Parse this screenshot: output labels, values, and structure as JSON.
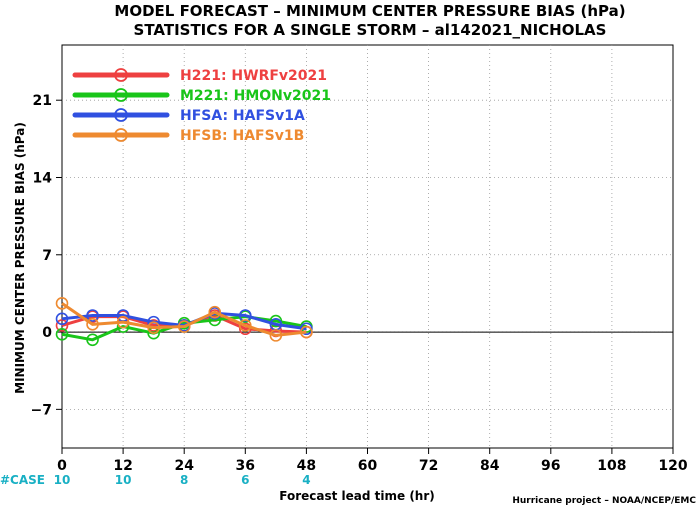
{
  "chart_data": {
    "type": "line",
    "title": "MODEL FORECAST – MINIMUM CENTER PRESSURE BIAS (hPa)",
    "subtitle": "STATISTICS FOR A SINGLE STORM – al142021_NICHOLAS",
    "xlabel": "Forecast lead time (hr)",
    "ylabel": "MINIMUM CENTER PRESSURE BIAS (hPa)",
    "xlim": [
      0,
      120
    ],
    "ylim": [
      -10.5,
      26
    ],
    "xticks": [
      0,
      12,
      24,
      36,
      48,
      60,
      72,
      84,
      96,
      108,
      120
    ],
    "yticks": [
      -7,
      0,
      7,
      14,
      21
    ],
    "grid": true,
    "legend_position": "top-left",
    "x": [
      0,
      6,
      12,
      18,
      24,
      30,
      36,
      42,
      48
    ],
    "series": [
      {
        "name": "H221",
        "label": "HWRFv2021",
        "color": "#ee4040",
        "values": [
          0.6,
          1.4,
          1.4,
          0.6,
          0.6,
          1.5,
          0.3,
          0.1,
          0.0
        ]
      },
      {
        "name": "M221",
        "label": "HMONv2021",
        "color": "#19c519",
        "values": [
          -0.2,
          -0.7,
          0.5,
          -0.1,
          0.8,
          1.1,
          1.4,
          1.0,
          0.5
        ]
      },
      {
        "name": "HFSA",
        "label": "HAFSv1A",
        "color": "#3050e0",
        "values": [
          1.2,
          1.5,
          1.5,
          0.9,
          0.6,
          1.7,
          1.5,
          0.7,
          0.3
        ]
      },
      {
        "name": "HFSB",
        "label": "HAFSv1B",
        "color": "#ee8a30",
        "values": [
          2.6,
          0.7,
          0.9,
          0.4,
          0.5,
          1.8,
          0.6,
          -0.3,
          0.0
        ]
      }
    ],
    "case_label": "#CASE",
    "cases": {
      "x": [
        0,
        12,
        24,
        36,
        48
      ],
      "values": [
        "10",
        "10",
        "8",
        "6",
        "4"
      ]
    },
    "case_color": "#19b0c4",
    "credit": "Hurricane project – NOAA/NCEP/EMC"
  }
}
